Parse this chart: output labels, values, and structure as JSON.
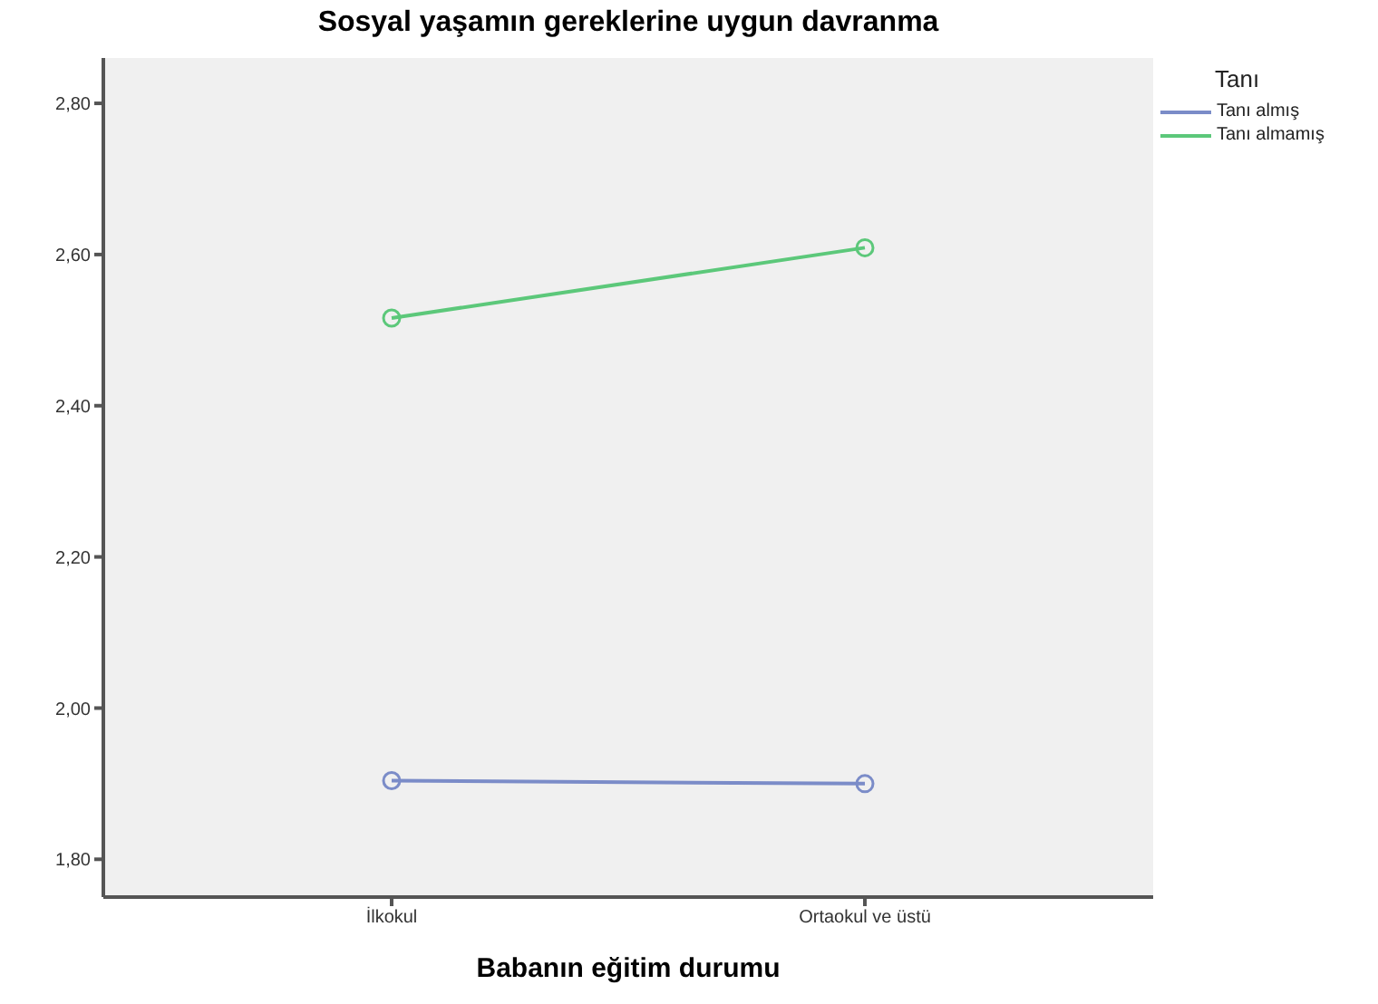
{
  "chart_data": {
    "type": "line",
    "title": "Sosyal yaşamın gereklerine uygun davranma",
    "xlabel": "Babanın eğitim durumu",
    "legend_title": "Tanı",
    "categories": [
      "İlkokul",
      "Ortaokul ve üstü"
    ],
    "series": [
      {
        "name": "Tanı almış",
        "color": "#7b8cc8",
        "values": [
          1.904,
          1.9
        ]
      },
      {
        "name": "Tanı almamış",
        "color": "#5cc87a",
        "values": [
          2.516,
          2.609
        ]
      }
    ],
    "ylim": [
      1.75,
      2.86
    ],
    "yticks": [
      {
        "value": 1.8,
        "label": "1,80"
      },
      {
        "value": 2.0,
        "label": "2,00"
      },
      {
        "value": 2.2,
        "label": "2,20"
      },
      {
        "value": 2.4,
        "label": "2,40"
      },
      {
        "value": 2.6,
        "label": "2,60"
      },
      {
        "value": 2.8,
        "label": "2,80"
      }
    ],
    "grid": false,
    "legend": "top right",
    "marker": "circle",
    "line_style": "solid"
  }
}
